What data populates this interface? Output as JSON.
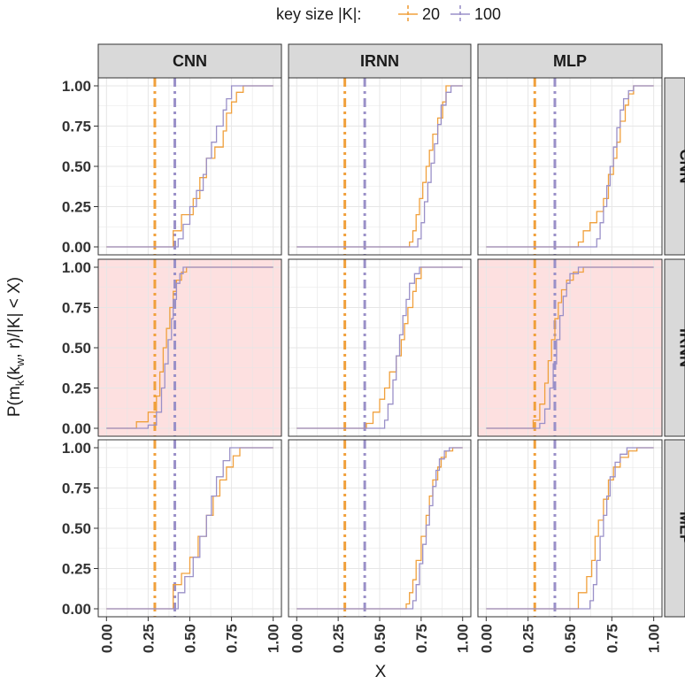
{
  "chart_data": {
    "type": "line",
    "subtype": "ecdf-step",
    "legend": {
      "title": "key size |K|:",
      "position": "top",
      "entries": [
        {
          "label": "20",
          "color": "#f0a03c"
        },
        {
          "label": "100",
          "color": "#9a90c8"
        }
      ]
    },
    "xlabel": "X",
    "ylabel_parts": {
      "prefix": "P(m",
      "sub1": "k",
      "mid": "(",
      "hat": "^",
      "k2": "k",
      "sub2": "w",
      "suffix": ", r)/|K| < X)"
    },
    "xlim": [
      0,
      1
    ],
    "ylim": [
      0,
      1
    ],
    "x_ticks": [
      "0.00",
      "0.25",
      "0.50",
      "0.75",
      "1.00"
    ],
    "y_ticks": [
      "0.00",
      "0.25",
      "0.50",
      "0.75",
      "1.00"
    ],
    "col_labels": [
      "CNN",
      "IRNN",
      "MLP"
    ],
    "row_labels": [
      "CNN",
      "IRNN",
      "MLP"
    ],
    "highlight_color": "#fde0e0",
    "grid": true,
    "vlines": [
      {
        "series": "20",
        "x": 0.29,
        "style": "dash-dot"
      },
      {
        "series": "100",
        "x": 0.41,
        "style": "dash-dot"
      }
    ],
    "panels": [
      {
        "row": "CNN",
        "col": "CNN",
        "highlight": false,
        "series": [
          {
            "name": "20",
            "x": [
              0,
              0.4,
              0.4,
              0.45,
              0.52,
              0.56,
              0.6,
              0.65,
              0.7,
              0.72,
              0.75,
              0.78,
              0.82,
              1.0
            ],
            "y": [
              0,
              0,
              0.1,
              0.2,
              0.3,
              0.43,
              0.55,
              0.62,
              0.72,
              0.83,
              0.9,
              0.96,
              1.0,
              1.0
            ]
          },
          {
            "name": "100",
            "x": [
              0,
              0.43,
              0.46,
              0.5,
              0.54,
              0.58,
              0.6,
              0.63,
              0.66,
              0.7,
              0.72,
              0.75,
              1.0
            ],
            "y": [
              0,
              0.05,
              0.14,
              0.25,
              0.35,
              0.45,
              0.55,
              0.65,
              0.75,
              0.85,
              0.92,
              1.0,
              1.0
            ]
          }
        ]
      },
      {
        "row": "CNN",
        "col": "IRNN",
        "highlight": false,
        "series": [
          {
            "name": "20",
            "x": [
              0,
              0.68,
              0.7,
              0.72,
              0.74,
              0.76,
              0.78,
              0.8,
              0.82,
              0.85,
              0.88,
              0.9,
              1.0
            ],
            "y": [
              0,
              0.03,
              0.1,
              0.2,
              0.3,
              0.4,
              0.5,
              0.6,
              0.7,
              0.8,
              0.9,
              1.0,
              1.0
            ]
          },
          {
            "name": "100",
            "x": [
              0,
              0.73,
              0.75,
              0.77,
              0.79,
              0.81,
              0.83,
              0.85,
              0.87,
              0.9,
              0.93,
              1.0
            ],
            "y": [
              0,
              0.05,
              0.15,
              0.28,
              0.4,
              0.52,
              0.64,
              0.76,
              0.88,
              0.96,
              1.0,
              1.0
            ]
          }
        ]
      },
      {
        "row": "CNN",
        "col": "MLP",
        "highlight": false,
        "series": [
          {
            "name": "20",
            "x": [
              0,
              0.55,
              0.58,
              0.62,
              0.66,
              0.7,
              0.73,
              0.76,
              0.78,
              0.8,
              0.83,
              0.85,
              0.88,
              1.0
            ],
            "y": [
              0,
              0.03,
              0.1,
              0.15,
              0.22,
              0.3,
              0.45,
              0.55,
              0.65,
              0.78,
              0.88,
              0.95,
              1.0,
              1.0
            ]
          },
          {
            "name": "100",
            "x": [
              0,
              0.66,
              0.68,
              0.7,
              0.72,
              0.74,
              0.76,
              0.78,
              0.8,
              0.82,
              0.85,
              0.88,
              1.0
            ],
            "y": [
              0,
              0.05,
              0.15,
              0.25,
              0.38,
              0.5,
              0.62,
              0.74,
              0.85,
              0.92,
              0.97,
              1.0,
              1.0
            ]
          }
        ]
      },
      {
        "row": "IRNN",
        "col": "CNN",
        "highlight": true,
        "series": [
          {
            "name": "20",
            "x": [
              0,
              0.18,
              0.25,
              0.3,
              0.32,
              0.34,
              0.36,
              0.38,
              0.4,
              0.42,
              0.45,
              0.48,
              1.0
            ],
            "y": [
              0,
              0.04,
              0.1,
              0.2,
              0.35,
              0.5,
              0.62,
              0.75,
              0.85,
              0.92,
              0.97,
              1.0,
              1.0
            ]
          },
          {
            "name": "100",
            "x": [
              0,
              0.25,
              0.3,
              0.33,
              0.35,
              0.37,
              0.39,
              0.4,
              0.42,
              0.44,
              0.46,
              1.0
            ],
            "y": [
              0,
              0.02,
              0.1,
              0.25,
              0.4,
              0.55,
              0.68,
              0.8,
              0.9,
              0.96,
              1.0,
              1.0
            ]
          }
        ]
      },
      {
        "row": "IRNN",
        "col": "IRNN",
        "highlight": false,
        "series": [
          {
            "name": "20",
            "x": [
              0,
              0.42,
              0.46,
              0.5,
              0.53,
              0.56,
              0.6,
              0.63,
              0.65,
              0.67,
              0.7,
              0.72,
              0.75,
              1.0
            ],
            "y": [
              0,
              0.03,
              0.1,
              0.18,
              0.25,
              0.35,
              0.45,
              0.55,
              0.65,
              0.75,
              0.85,
              0.93,
              1.0,
              1.0
            ]
          },
          {
            "name": "100",
            "x": [
              0,
              0.53,
              0.55,
              0.58,
              0.6,
              0.62,
              0.64,
              0.66,
              0.68,
              0.71,
              0.74,
              1.0
            ],
            "y": [
              0,
              0.05,
              0.15,
              0.3,
              0.45,
              0.58,
              0.7,
              0.8,
              0.9,
              0.96,
              1.0,
              1.0
            ]
          }
        ]
      },
      {
        "row": "IRNN",
        "col": "MLP",
        "highlight": true,
        "series": [
          {
            "name": "20",
            "x": [
              0,
              0.28,
              0.32,
              0.35,
              0.37,
              0.39,
              0.41,
              0.43,
              0.45,
              0.48,
              0.52,
              0.58,
              1.0
            ],
            "y": [
              0,
              0.05,
              0.15,
              0.28,
              0.42,
              0.55,
              0.68,
              0.78,
              0.86,
              0.92,
              0.97,
              1.0,
              1.0
            ]
          },
          {
            "name": "100",
            "x": [
              0,
              0.32,
              0.35,
              0.38,
              0.4,
              0.42,
              0.44,
              0.46,
              0.48,
              0.5,
              0.55,
              1.0
            ],
            "y": [
              0,
              0.03,
              0.12,
              0.25,
              0.4,
              0.55,
              0.7,
              0.82,
              0.9,
              0.96,
              1.0,
              1.0
            ]
          }
        ]
      },
      {
        "row": "MLP",
        "col": "CNN",
        "highlight": false,
        "series": [
          {
            "name": "20",
            "x": [
              0,
              0.4,
              0.4,
              0.45,
              0.5,
              0.55,
              0.6,
              0.64,
              0.68,
              0.72,
              0.76,
              0.8,
              1.0
            ],
            "y": [
              0,
              0,
              0.15,
              0.22,
              0.32,
              0.45,
              0.58,
              0.7,
              0.8,
              0.88,
              0.95,
              1.0,
              1.0
            ]
          },
          {
            "name": "100",
            "x": [
              0,
              0.43,
              0.47,
              0.52,
              0.56,
              0.6,
              0.63,
              0.66,
              0.7,
              0.74,
              1.0
            ],
            "y": [
              0,
              0.1,
              0.2,
              0.32,
              0.45,
              0.58,
              0.7,
              0.82,
              0.92,
              1.0,
              1.0
            ]
          }
        ]
      },
      {
        "row": "MLP",
        "col": "IRNN",
        "highlight": false,
        "series": [
          {
            "name": "20",
            "x": [
              0,
              0.66,
              0.68,
              0.7,
              0.72,
              0.75,
              0.78,
              0.8,
              0.82,
              0.85,
              0.87,
              0.9,
              0.94,
              1.0
            ],
            "y": [
              0,
              0.03,
              0.1,
              0.18,
              0.3,
              0.45,
              0.58,
              0.7,
              0.8,
              0.88,
              0.94,
              0.98,
              1.0,
              1.0
            ]
          },
          {
            "name": "100",
            "x": [
              0,
              0.7,
              0.72,
              0.74,
              0.76,
              0.78,
              0.8,
              0.82,
              0.84,
              0.86,
              0.89,
              0.92,
              1.0
            ],
            "y": [
              0,
              0.05,
              0.15,
              0.28,
              0.4,
              0.52,
              0.64,
              0.76,
              0.86,
              0.93,
              0.98,
              1.0,
              1.0
            ]
          }
        ]
      },
      {
        "row": "MLP",
        "col": "MLP",
        "highlight": false,
        "series": [
          {
            "name": "20",
            "x": [
              0,
              0.55,
              0.6,
              0.63,
              0.65,
              0.67,
              0.7,
              0.73,
              0.76,
              0.8,
              0.85,
              0.9,
              1.0
            ],
            "y": [
              0,
              0.1,
              0.2,
              0.3,
              0.45,
              0.55,
              0.68,
              0.8,
              0.88,
              0.94,
              0.98,
              1.0,
              1.0
            ]
          },
          {
            "name": "100",
            "x": [
              0,
              0.62,
              0.64,
              0.66,
              0.68,
              0.7,
              0.72,
              0.74,
              0.77,
              0.8,
              0.84,
              1.0
            ],
            "y": [
              0,
              0.05,
              0.15,
              0.3,
              0.45,
              0.58,
              0.7,
              0.82,
              0.91,
              0.96,
              1.0,
              1.0
            ]
          }
        ]
      }
    ]
  }
}
